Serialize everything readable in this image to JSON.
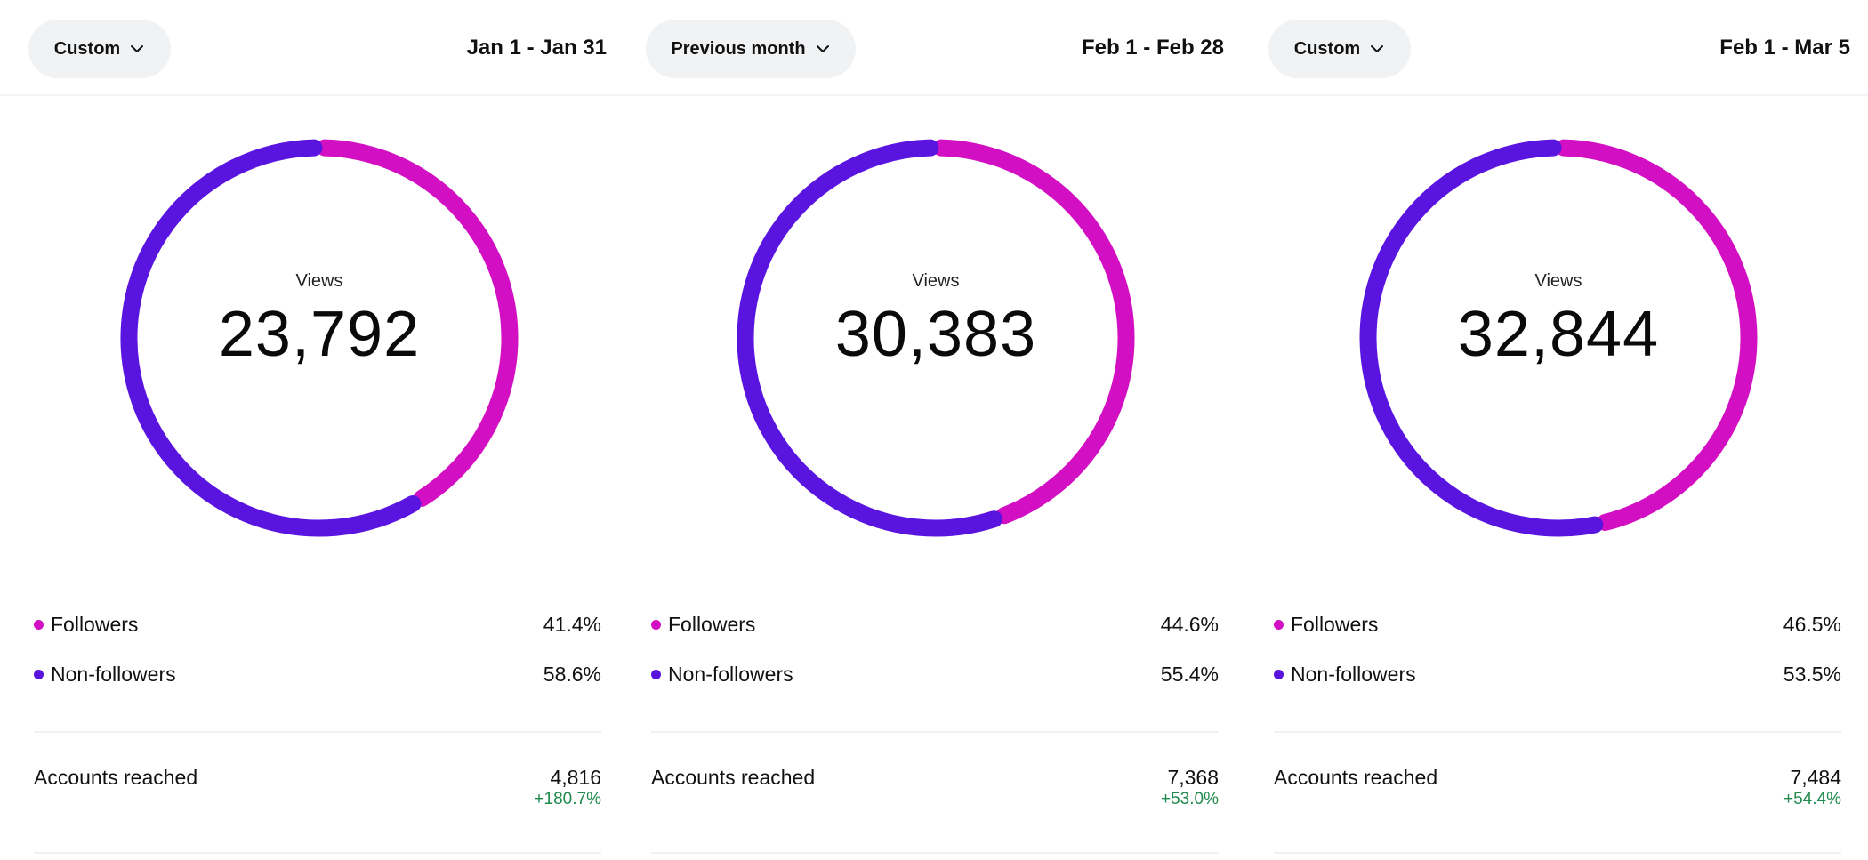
{
  "colors": {
    "followers": "#d20fc2",
    "non_followers": "#5a14e0",
    "positive_change": "#1f8a4c",
    "button_bg": "#f1f2f4"
  },
  "panels": [
    {
      "range_button": {
        "label": "Custom",
        "icon": "chevron-down-icon"
      },
      "date_range": "Jan 1 - Jan 31",
      "center_label": "Views",
      "views": "23,792",
      "legend": [
        {
          "label": "Followers",
          "percent": "41.4%",
          "value": 41.4
        },
        {
          "label": "Non-followers",
          "percent": "58.6%",
          "value": 58.6
        }
      ],
      "accounts_reached": {
        "label": "Accounts reached",
        "value": "4,816",
        "change": "+180.7%"
      }
    },
    {
      "range_button": {
        "label": "Previous month",
        "icon": "chevron-down-icon"
      },
      "date_range": "Feb 1 - Feb 28",
      "center_label": "Views",
      "views": "30,383",
      "legend": [
        {
          "label": "Followers",
          "percent": "44.6%",
          "value": 44.6
        },
        {
          "label": "Non-followers",
          "percent": "55.4%",
          "value": 55.4
        }
      ],
      "accounts_reached": {
        "label": "Accounts reached",
        "value": "7,368",
        "change": "+53.0%"
      }
    },
    {
      "range_button": {
        "label": "Custom",
        "icon": "chevron-down-icon"
      },
      "date_range": "Feb 1 - Mar 5",
      "center_label": "Views",
      "views": "32,844",
      "legend": [
        {
          "label": "Followers",
          "percent": "46.5%",
          "value": 46.5
        },
        {
          "label": "Non-followers",
          "percent": "53.5%",
          "value": 53.5
        }
      ],
      "accounts_reached": {
        "label": "Accounts reached",
        "value": "7,484",
        "change": "+54.4%"
      }
    }
  ]
}
